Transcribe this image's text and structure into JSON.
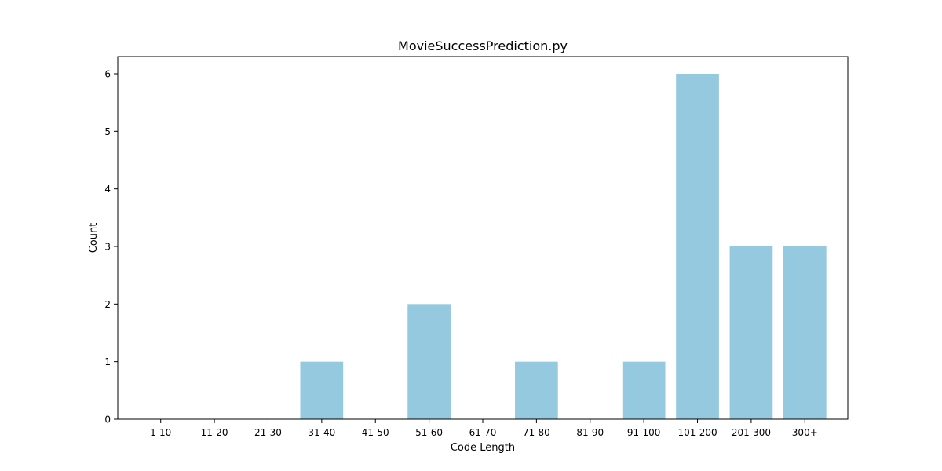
{
  "chart_data": {
    "type": "bar",
    "title": "MovieSuccessPrediction.py",
    "xlabel": "Code Length",
    "ylabel": "Count",
    "categories": [
      "1-10",
      "11-20",
      "21-30",
      "31-40",
      "41-50",
      "51-60",
      "61-70",
      "71-80",
      "81-90",
      "91-100",
      "101-200",
      "201-300",
      "300+"
    ],
    "values": [
      0,
      0,
      0,
      1,
      0,
      2,
      0,
      1,
      0,
      1,
      6,
      3,
      3
    ],
    "ylim": [
      0,
      6.3
    ],
    "yticks": [
      0,
      1,
      2,
      3,
      4,
      5,
      6
    ],
    "grid": false,
    "bar_color": "#95c9df",
    "axis_color": "#000000"
  }
}
